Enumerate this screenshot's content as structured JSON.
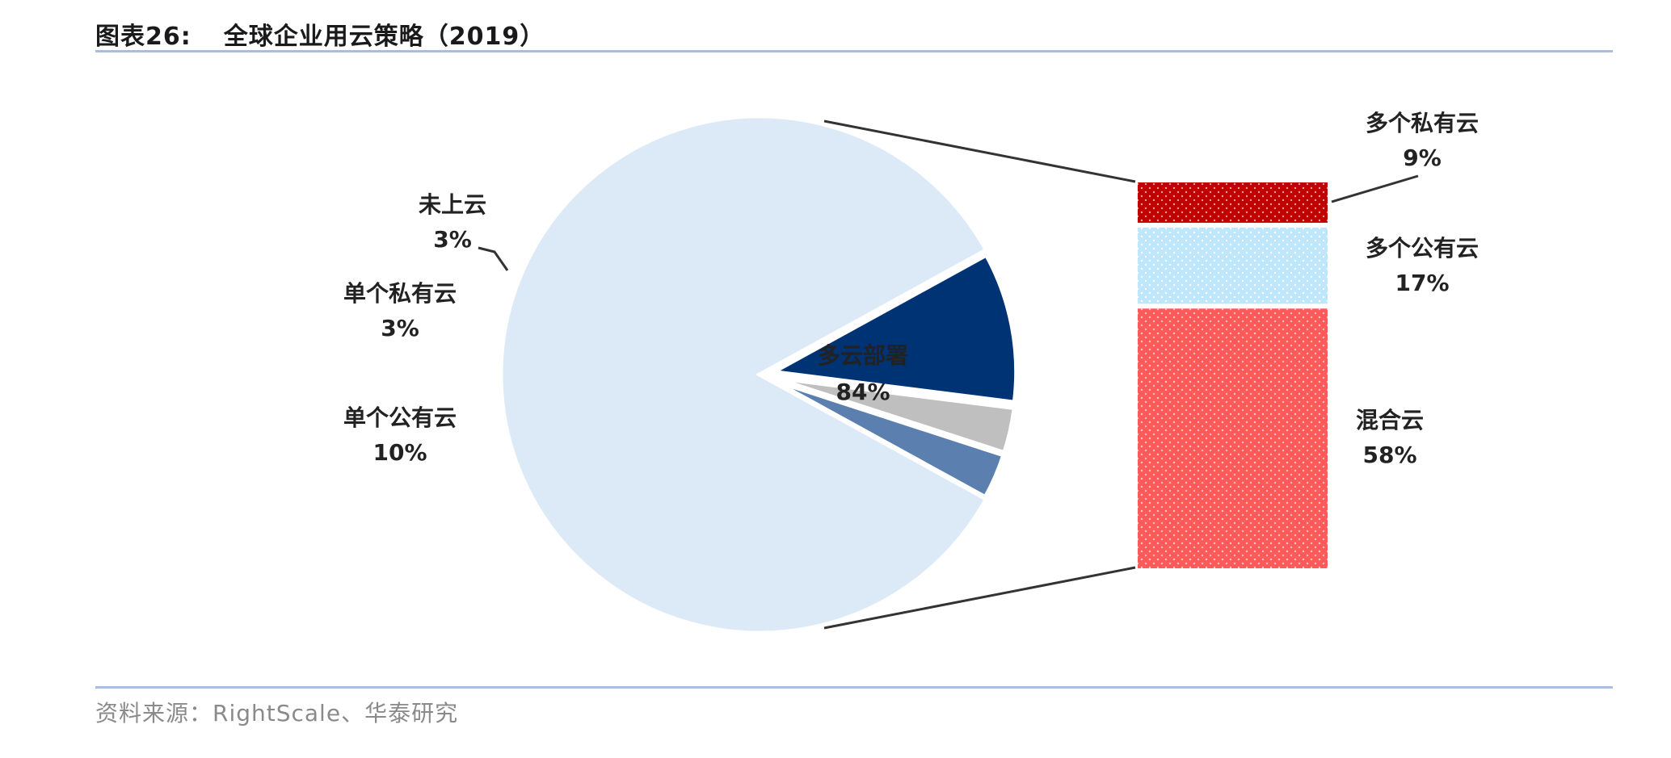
{
  "header": {
    "figure_number": "图表26:",
    "title": "全球企业用云策略（2019）"
  },
  "footer": {
    "source": "资料来源：RightScale、华泰研究"
  },
  "colors": {
    "multi_cloud": "#dce9f7",
    "single_public": "#003373",
    "single_private": "#bfbfbf",
    "no_cloud": "#5b7fae",
    "multi_private": "#c00000",
    "multi_public": "#bfe7fb",
    "hybrid": "#ff5a5a",
    "rules": "#a9bfdc"
  },
  "chart_data": {
    "type": "bar-of-pie",
    "title": "全球企业用云策略（2019）",
    "pie": {
      "slices": [
        {
          "label": "多云部署",
          "value": 84,
          "display": "84%"
        },
        {
          "label": "单个公有云",
          "value": 10,
          "display": "10%"
        },
        {
          "label": "单个私有云",
          "value": 3,
          "display": "3%"
        },
        {
          "label": "未上云",
          "value": 3,
          "display": "3%"
        }
      ]
    },
    "bar": {
      "breakdown_of": "多云部署",
      "segments": [
        {
          "label": "多个私有云",
          "value": 9,
          "display": "9%"
        },
        {
          "label": "多个公有云",
          "value": 17,
          "display": "17%"
        },
        {
          "label": "混合云",
          "value": 58,
          "display": "58%"
        }
      ]
    }
  }
}
